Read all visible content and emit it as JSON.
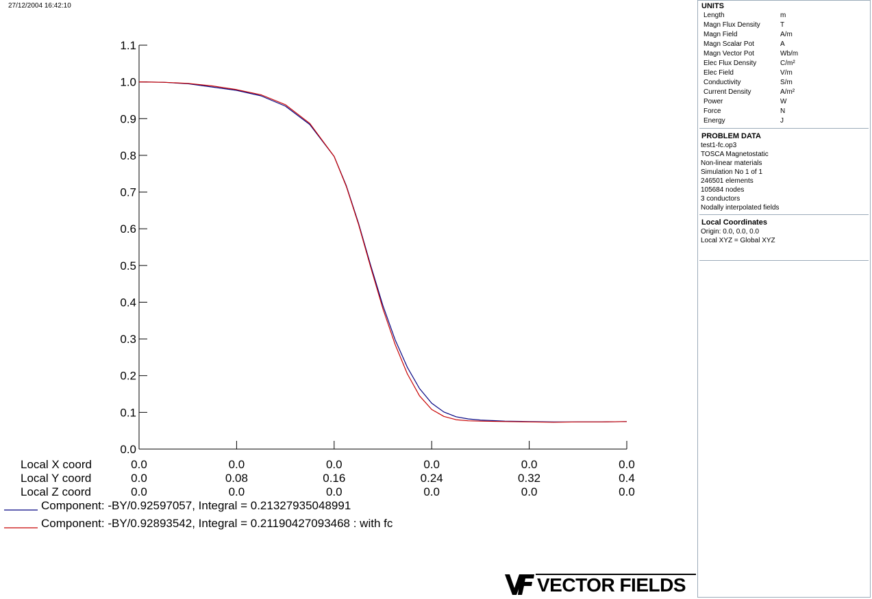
{
  "timestamp": "27/12/2004 16:42:10",
  "units": {
    "title": "UNITS",
    "rows": [
      {
        "name": "Length",
        "unit": "m"
      },
      {
        "name": "Magn Flux Density",
        "unit": "T"
      },
      {
        "name": "Magn Field",
        "unit": "A/m"
      },
      {
        "name": "Magn Scalar Pot",
        "unit": "A"
      },
      {
        "name": "Magn Vector Pot",
        "unit": "Wb/m"
      },
      {
        "name": "Elec Flux Density",
        "unit": "C/m²"
      },
      {
        "name": "Elec Field",
        "unit": "V/m"
      },
      {
        "name": "Conductivity",
        "unit": "S/m"
      },
      {
        "name": "Current Density",
        "unit": "A/m²"
      },
      {
        "name": "Power",
        "unit": "W"
      },
      {
        "name": "Force",
        "unit": "N"
      },
      {
        "name": "Energy",
        "unit": "J"
      }
    ]
  },
  "problem_data": {
    "title": "PROBLEM DATA",
    "lines": [
      "test1-fc.op3",
      "TOSCA Magnetostatic",
      "Non-linear materials",
      "Simulation No 1 of 1",
      "246501 elements",
      "105684 nodes",
      "3 conductors",
      "Nodally interpolated fields"
    ]
  },
  "local_coordinates": {
    "title": "Local Coordinates",
    "lines": [
      "Origin: 0.0, 0.0, 0.0",
      "Local XYZ = Global XYZ"
    ]
  },
  "logo": {
    "mark": "VF",
    "text": "VECTOR FIELDS"
  },
  "chart_data": {
    "type": "line",
    "ylim": [
      0.0,
      1.1
    ],
    "xlim": [
      0.0,
      0.4
    ],
    "grid": false,
    "yticks": [
      "0.0",
      "0.1",
      "0.2",
      "0.3",
      "0.4",
      "0.5",
      "0.6",
      "0.7",
      "0.8",
      "0.9",
      "1.0",
      "1.1"
    ],
    "coord_rows": [
      {
        "label": "Local X coord",
        "ticks": [
          "0.0",
          "0.0",
          "0.0",
          "0.0",
          "0.0",
          "0.0"
        ]
      },
      {
        "label": "Local Y coord",
        "ticks": [
          "0.0",
          "0.08",
          "0.16",
          "0.24",
          "0.32",
          "0.4"
        ]
      },
      {
        "label": "Local Z coord",
        "ticks": [
          "0.0",
          "0.0",
          "0.0",
          "0.0",
          "0.0",
          "0.0"
        ]
      }
    ],
    "series": [
      {
        "name": "Component: -BY/0.92597057, Integral = 0.21327935048991",
        "color": "#000080",
        "x": [
          0.0,
          0.02,
          0.04,
          0.06,
          0.08,
          0.1,
          0.12,
          0.14,
          0.16,
          0.17,
          0.18,
          0.19,
          0.2,
          0.21,
          0.22,
          0.23,
          0.24,
          0.25,
          0.26,
          0.27,
          0.28,
          0.3,
          0.32,
          0.34,
          0.36,
          0.38,
          0.4
        ],
        "y": [
          1.0,
          0.999,
          0.995,
          0.986,
          0.977,
          0.962,
          0.934,
          0.884,
          0.797,
          0.717,
          0.615,
          0.5,
          0.391,
          0.298,
          0.223,
          0.165,
          0.125,
          0.101,
          0.088,
          0.082,
          0.079,
          0.076,
          0.075,
          0.074,
          0.074,
          0.074,
          0.075
        ]
      },
      {
        "name": "Component: -BY/0.92893542, Integral = 0.21190427093468 : with fc",
        "color": "#c80000",
        "x": [
          0.0,
          0.02,
          0.04,
          0.06,
          0.08,
          0.1,
          0.12,
          0.14,
          0.16,
          0.17,
          0.18,
          0.19,
          0.2,
          0.21,
          0.22,
          0.23,
          0.24,
          0.25,
          0.26,
          0.27,
          0.28,
          0.3,
          0.32,
          0.34,
          0.36,
          0.38,
          0.4
        ],
        "y": [
          1.0,
          0.999,
          0.996,
          0.989,
          0.979,
          0.965,
          0.938,
          0.887,
          0.797,
          0.715,
          0.612,
          0.495,
          0.382,
          0.285,
          0.205,
          0.145,
          0.108,
          0.089,
          0.08,
          0.077,
          0.076,
          0.075,
          0.074,
          0.073,
          0.074,
          0.074,
          0.075
        ]
      }
    ]
  }
}
